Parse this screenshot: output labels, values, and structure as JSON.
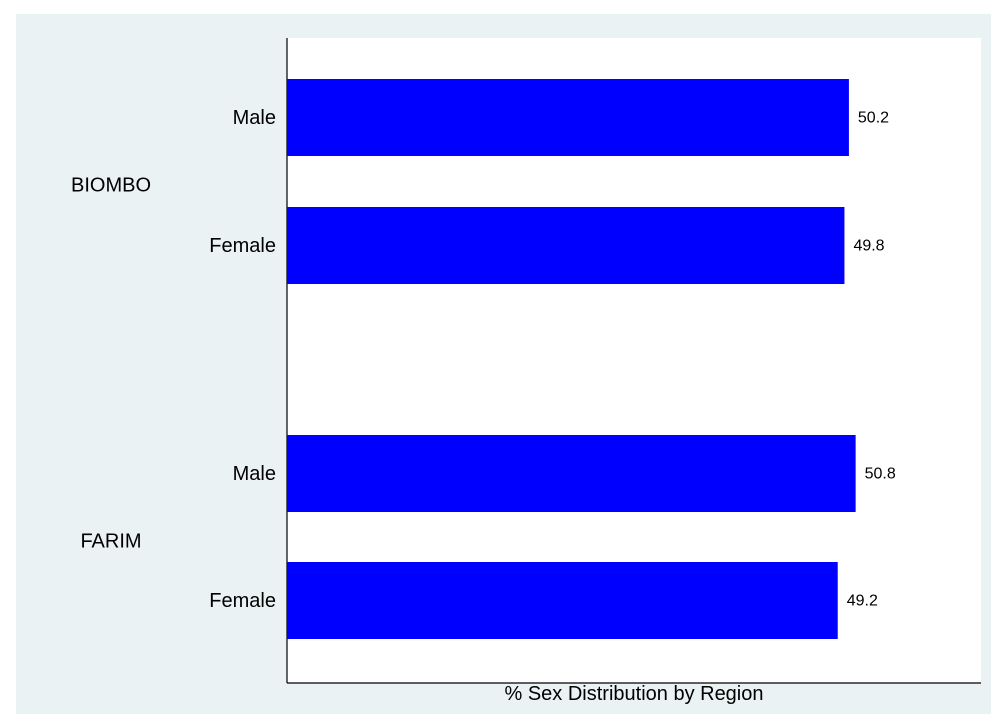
{
  "chart_data": {
    "type": "bar",
    "orientation": "horizontal",
    "groups": [
      {
        "name": "BIOMBO",
        "bars": [
          {
            "category": "Male",
            "value": 50.2
          },
          {
            "category": "Female",
            "value": 49.8
          }
        ]
      },
      {
        "name": "FARIM",
        "bars": [
          {
            "category": "Male",
            "value": 50.8
          },
          {
            "category": "Female",
            "value": 49.2
          }
        ]
      }
    ],
    "xlabel": "% Sex Distribution by Region",
    "xlim": [
      0,
      62
    ],
    "bar_color": "#0000ff",
    "grid": false,
    "legend": "none"
  }
}
